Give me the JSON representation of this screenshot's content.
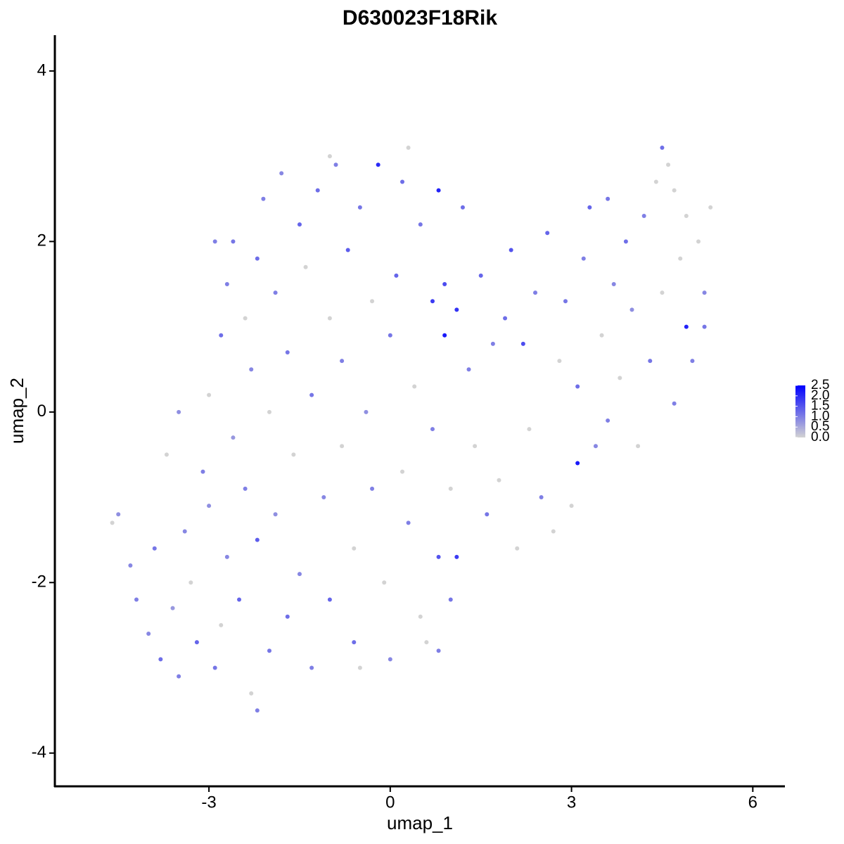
{
  "chart_data": {
    "type": "scatter",
    "title": "D630023F18Rik",
    "x_label": "umap_1",
    "y_label": "umap_2",
    "xlim": [
      -5.55,
      6.52
    ],
    "ylim": [
      -4.39,
      4.42
    ],
    "xticks": [
      -3,
      0,
      3,
      6
    ],
    "yticks": [
      -4,
      -2,
      0,
      2,
      4
    ],
    "color_low": "#d3d3d3",
    "color_high": "#0000ff",
    "color_lim": [
      0,
      2.5
    ],
    "color_ticks": [
      {
        "value": 0,
        "label": "0.0"
      },
      0.5,
      {
        "value": 1,
        "label": "1.0"
      },
      1.5,
      {
        "value": 2,
        "label": "2.0"
      },
      2.5
    ],
    "x": [
      -4.6,
      -4.5,
      -4.3,
      -4.2,
      -4.0,
      -3.9,
      -3.8,
      -3.6,
      -3.5,
      -3.4,
      -3.3,
      -3.2,
      -3.1,
      -3.0,
      -3.0,
      -2.9,
      -2.8,
      -2.8,
      -2.7,
      -2.7,
      -2.6,
      -2.6,
      -2.5,
      -2.4,
      -2.4,
      -2.3,
      -2.3,
      -2.2,
      -2.2,
      -2.1,
      -2.0,
      -2.0,
      -1.9,
      -1.9,
      -1.8,
      -1.7,
      -1.7,
      -1.6,
      -1.5,
      -1.5,
      -1.4,
      -1.3,
      -1.3,
      -1.2,
      -1.1,
      -1.0,
      -1.0,
      -0.9,
      -0.8,
      -0.8,
      -0.7,
      -0.6,
      -0.6,
      -0.5,
      -0.4,
      -0.3,
      -0.3,
      -0.2,
      -0.1,
      0.0,
      0.0,
      0.1,
      0.2,
      0.2,
      0.3,
      0.4,
      0.5,
      0.5,
      0.6,
      0.7,
      0.7,
      0.8,
      0.8,
      0.9,
      0.9,
      1.0,
      1.0,
      1.1,
      1.1,
      1.2,
      1.3,
      1.4,
      1.5,
      1.6,
      1.7,
      1.8,
      1.9,
      2.0,
      2.1,
      2.2,
      2.3,
      2.4,
      2.5,
      2.6,
      2.7,
      2.8,
      2.9,
      3.0,
      3.1,
      3.1,
      3.2,
      3.3,
      3.4,
      3.5,
      3.6,
      3.6,
      3.7,
      3.8,
      3.9,
      4.0,
      4.1,
      4.2,
      4.3,
      4.4,
      4.5,
      4.5,
      4.6,
      4.7,
      4.7,
      4.8,
      4.9,
      4.9,
      5.0,
      5.1,
      5.2,
      5.3,
      5.2,
      -3.7,
      -1.0,
      0.3,
      -2.2,
      -0.5,
      0.8,
      -3.5,
      -2.9
    ],
    "y": [
      -1.3,
      -1.2,
      -1.8,
      -2.2,
      -2.6,
      -1.6,
      -2.9,
      -2.3,
      -3.1,
      -1.4,
      -2.0,
      -2.7,
      -0.7,
      -1.1,
      0.2,
      -3.0,
      -2.5,
      0.9,
      -1.7,
      1.5,
      -0.3,
      2.0,
      -2.2,
      1.1,
      -0.9,
      -3.3,
      0.5,
      1.8,
      -1.5,
      2.5,
      -2.8,
      0.0,
      -1.2,
      1.4,
      2.8,
      -2.4,
      0.7,
      -0.5,
      2.2,
      -1.9,
      1.7,
      -3.0,
      0.2,
      2.6,
      -1.0,
      1.1,
      -2.2,
      2.9,
      0.6,
      -0.4,
      1.9,
      -1.6,
      -2.7,
      2.4,
      0.0,
      1.3,
      -0.9,
      2.9,
      -2.0,
      0.9,
      -2.9,
      1.6,
      -0.7,
      2.7,
      -1.3,
      0.3,
      -2.4,
      2.2,
      -2.7,
      1.3,
      -0.2,
      2.6,
      -1.7,
      0.9,
      1.5,
      -2.2,
      -0.9,
      1.2,
      -1.7,
      2.4,
      0.5,
      -0.4,
      1.6,
      -1.2,
      0.8,
      -0.8,
      1.1,
      1.9,
      -1.6,
      0.8,
      -0.2,
      1.4,
      -1.0,
      2.1,
      -1.4,
      0.6,
      1.3,
      -1.1,
      0.3,
      -0.6,
      1.8,
      2.4,
      -0.4,
      0.9,
      2.5,
      -0.1,
      1.5,
      0.4,
      2.0,
      1.2,
      -0.4,
      2.3,
      0.6,
      2.7,
      3.1,
      1.4,
      2.9,
      0.1,
      2.6,
      1.8,
      1.0,
      2.3,
      0.6,
      2.0,
      1.4,
      2.4,
      1.0,
      -0.5,
      3.0,
      3.1,
      -3.5,
      -3.0,
      -2.8,
      0.0,
      2.0
    ],
    "values": [
      0,
      0.8,
      0.9,
      1.0,
      0.9,
      1.1,
      1.2,
      0.7,
      1.0,
      0.9,
      0,
      1.3,
      1.0,
      0.8,
      0,
      1.1,
      0,
      1.2,
      0.9,
      1.0,
      0.7,
      1.1,
      1.3,
      0,
      1.0,
      0,
      0.9,
      1.2,
      1.4,
      1.0,
      1.1,
      0,
      0.8,
      1.0,
      0.9,
      1.2,
      1.1,
      0,
      1.3,
      0.9,
      0,
      1.0,
      1.1,
      1.2,
      0.9,
      0,
      1.3,
      1.0,
      1.0,
      0,
      1.4,
      0,
      1.2,
      1.1,
      0.8,
      0,
      1.0,
      2.0,
      0,
      1.1,
      0.9,
      1.3,
      0,
      1.2,
      1.0,
      0,
      0,
      1.1,
      0,
      1.8,
      1.0,
      2.1,
      1.5,
      2.2,
      1.6,
      1.1,
      0,
      1.9,
      1.8,
      1.2,
      1.0,
      0,
      1.3,
      1.1,
      1.0,
      0,
      1.2,
      1.5,
      0,
      1.6,
      0,
      1.0,
      1.0,
      1.3,
      0,
      0,
      1.1,
      0,
      1.2,
      2.2,
      1.0,
      1.3,
      0.9,
      0,
      1.1,
      1.0,
      0.9,
      0,
      1.2,
      0.8,
      0,
      1.0,
      1.1,
      0,
      1.2,
      0,
      0,
      1.0,
      0,
      0,
      2.1,
      0,
      1.0,
      0,
      0.9,
      0,
      1.1,
      0,
      0,
      0,
      1.0,
      0,
      1.0,
      0.8,
      1.0
    ]
  }
}
